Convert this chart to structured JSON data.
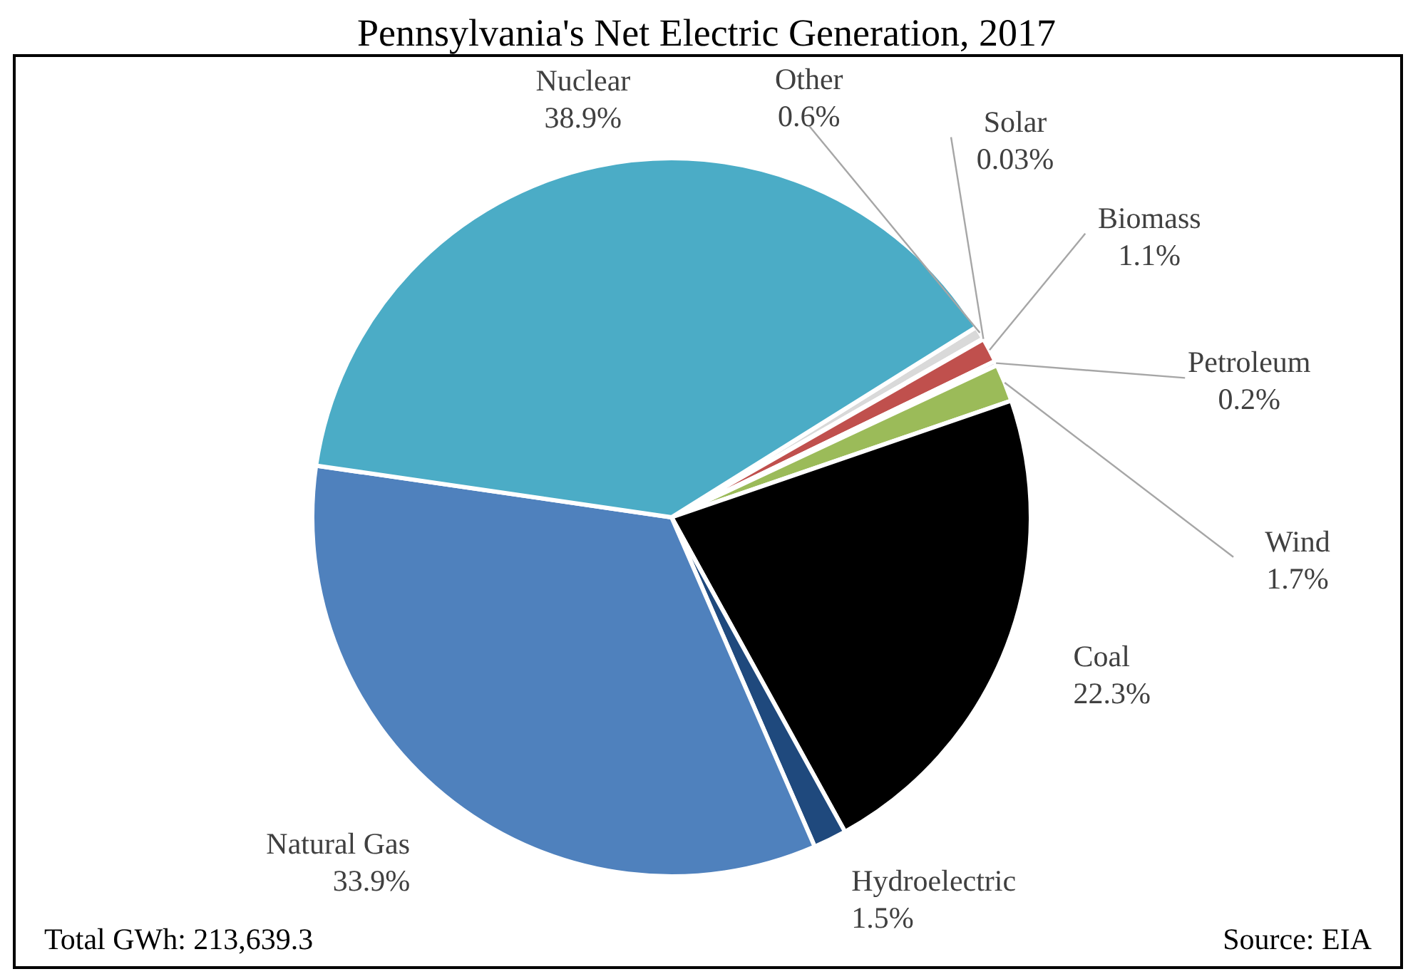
{
  "chart_data": {
    "type": "pie",
    "title": "Pennsylvania's Net Electric Generation, 2017",
    "categories": [
      "Other",
      "Solar",
      "Biomass",
      "Petroleum",
      "Wind",
      "Coal",
      "Hydroelectric",
      "Natural Gas",
      "Nuclear"
    ],
    "values": [
      0.6,
      0.03,
      1.1,
      0.2,
      1.7,
      22.3,
      1.5,
      33.9,
      38.9
    ],
    "value_labels": [
      "0.6%",
      "0.03%",
      "1.1%",
      "0.2%",
      "1.7%",
      "22.3%",
      "1.5%",
      "33.9%",
      "38.9%"
    ],
    "colors": [
      "#d9d9d9",
      "#f79646",
      "#c0504d",
      "#8064a2",
      "#9bbb59",
      "#000000",
      "#1f497d",
      "#4f81bd",
      "#4bacc6"
    ],
    "annotations": [
      "Total GWh: 213,639.3",
      "Source: EIA"
    ]
  }
}
